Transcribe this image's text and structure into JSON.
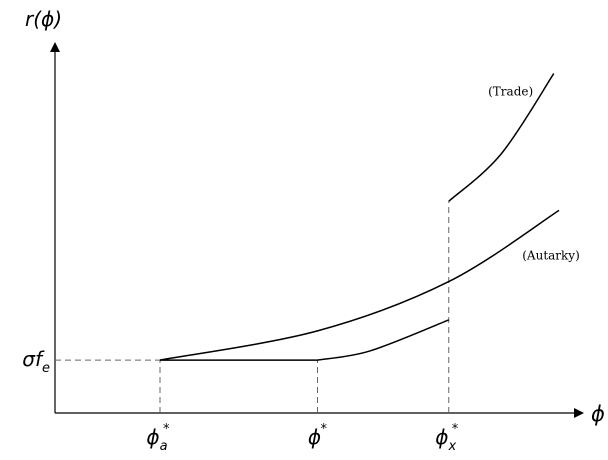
{
  "chart_data": {
    "type": "line",
    "title": "",
    "xlabel": "ϕ",
    "ylabel": "r(ϕ)",
    "xlim": [
      0,
      10
    ],
    "ylim": [
      0,
      10
    ],
    "grid": false,
    "legend": "none",
    "series": [
      {
        "name": "(Autarky)",
        "color": "#000000",
        "points": [
          [
            2.0,
            1.45
          ],
          [
            5.0,
            2.25
          ],
          [
            7.5,
            3.6
          ],
          [
            9.6,
            5.55
          ]
        ]
      },
      {
        "name": "(Trade)",
        "color": "#000000",
        "segments": [
          [
            [
              2.0,
              1.45
            ],
            [
              5.0,
              1.45
            ]
          ],
          [
            [
              5.0,
              1.45
            ],
            [
              6.0,
              1.7
            ],
            [
              7.5,
              2.55
            ]
          ],
          [
            [
              7.5,
              5.8
            ],
            [
              8.5,
              7.1
            ],
            [
              9.5,
              9.3
            ]
          ]
        ]
      }
    ],
    "x_ticks": [
      {
        "x": 2.0,
        "label": "ϕ",
        "sub": "a",
        "sup": "*"
      },
      {
        "x": 5.0,
        "label": "ϕ",
        "sub": "",
        "sup": "*"
      },
      {
        "x": 7.5,
        "label": "ϕ",
        "sub": "x",
        "sup": "*"
      }
    ],
    "y_ticks": [
      {
        "y": 1.45,
        "label": "σf",
        "sub": "e"
      }
    ],
    "dashed_guides": [
      {
        "from": [
          0,
          1.45
        ],
        "to": [
          5.0,
          1.45
        ]
      },
      {
        "from": [
          2.0,
          0
        ],
        "to": [
          2.0,
          1.45
        ]
      },
      {
        "from": [
          5.0,
          0
        ],
        "to": [
          5.0,
          1.45
        ]
      },
      {
        "from": [
          7.5,
          0
        ],
        "to": [
          7.5,
          5.8
        ]
      }
    ],
    "annotations": [
      {
        "text": "(Trade)",
        "x": 8.25,
        "y": 8.7
      },
      {
        "text": "(Autarky)",
        "x": 8.9,
        "y": 4.2
      }
    ]
  }
}
